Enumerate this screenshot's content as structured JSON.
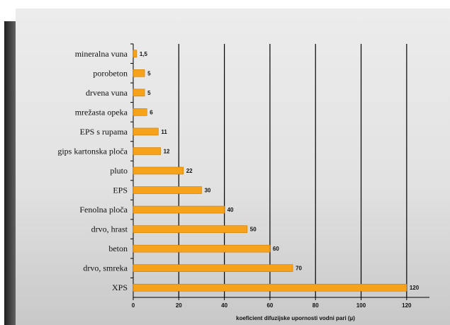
{
  "chart_data": {
    "type": "bar",
    "orientation": "horizontal",
    "categories": [
      "mineralna vuna",
      "porobeton",
      "drvena vuna",
      "mrežasta opeka",
      "EPS s rupama",
      "gips kartonska ploča",
      "pluto",
      "EPS",
      "Fenolna ploča",
      "drvo, hrast",
      "beton",
      "drvo, smreka",
      "XPS"
    ],
    "values": [
      1.5,
      5,
      5,
      6,
      11,
      12,
      22,
      30,
      40,
      50,
      60,
      70,
      120
    ],
    "value_labels": [
      "1,5",
      "5",
      "5",
      "6",
      "11",
      "12",
      "22",
      "30",
      "40",
      "50",
      "60",
      "70",
      "120"
    ],
    "xlabel": "koeficient difuzijske upornosti vodni pari (µ)",
    "xlim": [
      0,
      130
    ],
    "xticks": [
      0,
      20,
      40,
      60,
      80,
      100,
      120
    ],
    "grid": "vertical",
    "bar_color": "#f7a21b",
    "grid_color": "#000000",
    "background": "#e4e4e4"
  }
}
